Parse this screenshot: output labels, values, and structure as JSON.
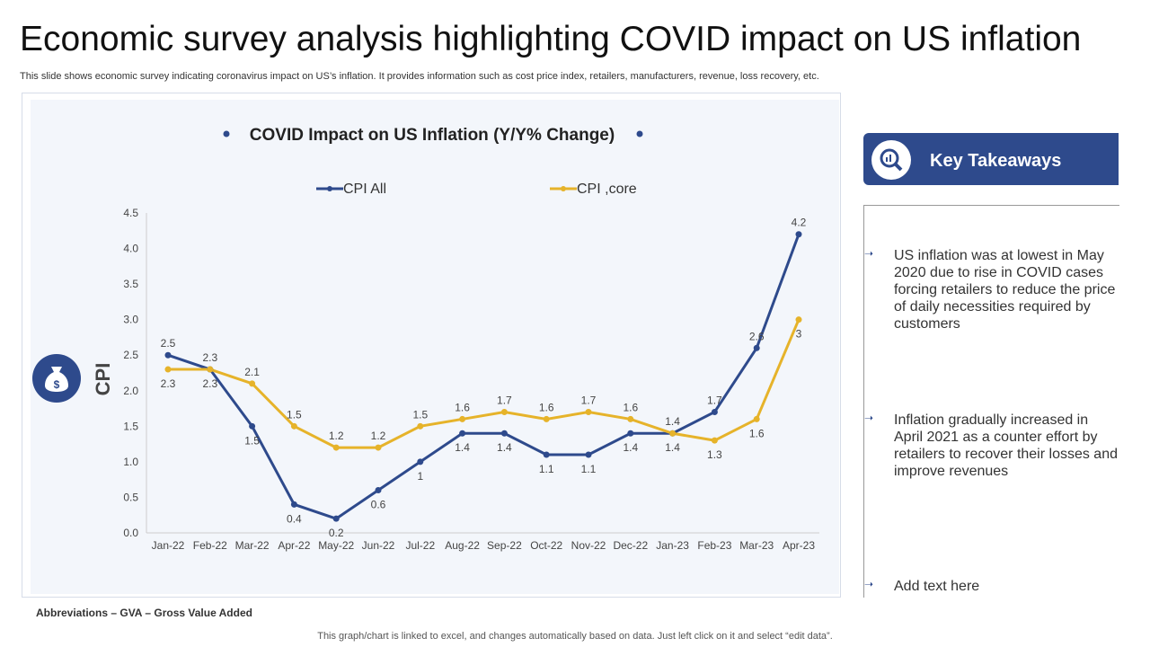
{
  "title": "Economic survey analysis highlighting COVID impact on US inflation",
  "subtitle": "This slide shows economic survey indicating coronavirus impact on US’s inflation. It provides information such as cost price index, retailers, manufacturers, revenue, loss recovery, etc.",
  "chart_data": {
    "type": "line",
    "title": "COVID Impact on US Inflation (Y/Y% Change)",
    "ylabel": "CPI",
    "xlabel": "",
    "ylim": [
      0,
      4.5
    ],
    "yticks": [
      "0.0",
      "0.5",
      "1.0",
      "1.5",
      "2.0",
      "2.5",
      "3.0",
      "3.5",
      "4.0",
      "4.5"
    ],
    "legend": "top",
    "categories": [
      "Jan-22",
      "Feb-22",
      "Mar-22",
      "Apr-22",
      "May-22",
      "Jun-22",
      "Jul-22",
      "Aug-22",
      "Sep-22",
      "Oct-22",
      "Nov-22",
      "Dec-22",
      "Jan-23",
      "Feb-23",
      "Mar-23",
      "Apr-23"
    ],
    "series": [
      {
        "name": "CPI All",
        "color": "#2e4a8c",
        "values": [
          2.5,
          2.3,
          1.5,
          0.4,
          0.2,
          0.6,
          1,
          1.4,
          1.4,
          1.1,
          1.1,
          1.4,
          1.4,
          1.7,
          2.6,
          4.2
        ]
      },
      {
        "name": "CPI ,core",
        "color": "#e6b32a",
        "values": [
          2.3,
          2.3,
          2.1,
          1.5,
          1.2,
          1.2,
          1.5,
          1.6,
          1.7,
          1.6,
          1.7,
          1.6,
          1.4,
          1.3,
          1.6,
          3
        ]
      }
    ]
  },
  "takeaways": {
    "heading": "Key Takeaways",
    "items": [
      "US inflation was at lowest in May 2020 due to rise in COVID cases forcing retailers to reduce the price of daily necessities required by customers",
      "Inflation gradually increased in April 2021 as a counter effort by retailers to recover their losses and improve revenues",
      "Add text here"
    ]
  },
  "abbreviations": "Abbreviations – GVA – Gross Value Added",
  "footer": "This graph/chart is linked to excel, and changes automatically based on data. Just left click on it and select “edit data”."
}
